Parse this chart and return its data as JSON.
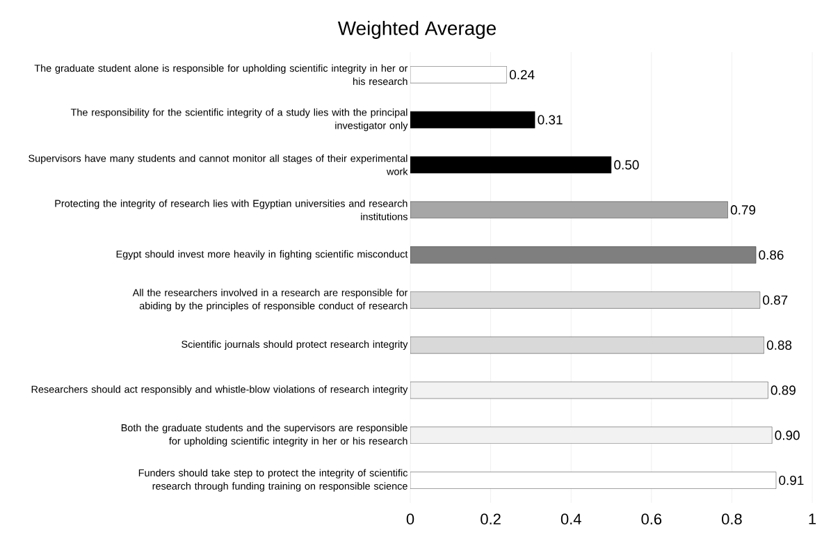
{
  "chart_data": {
    "type": "bar",
    "orientation": "horizontal",
    "title": "Weighted Average",
    "categories": [
      "The graduate student alone is responsible for upholding scientific integrity in her or his research",
      "The responsibility for the scientific integrity of a study lies with the principal investigator only",
      "Supervisors have many students and cannot monitor all stages of their experimental work",
      "Protecting the integrity of research lies with Egyptian universities and research institutions",
      "Egypt should invest more heavily in fighting scientific misconduct",
      "All the researchers involved in a research are responsible for abiding by the principles of responsible conduct of research",
      "Scientific journals should protect research integrity",
      "Researchers should act responsibly and whistle-blow violations of research integrity",
      "Both the graduate students and the supervisors are responsible for upholding scientific integrity in her or his research",
      "Funders should take step to protect the integrity of scientific research through funding training on responsible science"
    ],
    "values": [
      0.24,
      0.31,
      0.5,
      0.79,
      0.86,
      0.87,
      0.88,
      0.89,
      0.9,
      0.91
    ],
    "value_labels": [
      "0.24",
      "0.31",
      "0.50",
      "0.79",
      "0.86",
      "0.87",
      "0.88",
      "0.89",
      "0.90",
      "0.91"
    ],
    "colors": [
      "#ffffff",
      "#000000",
      "#000000",
      "#a6a6a6",
      "#7f7f7f",
      "#d9d9d9",
      "#d9d9d9",
      "#f2f2f2",
      "#f2f2f2",
      "#ffffff"
    ],
    "xlim": [
      0,
      1
    ],
    "xticks": [
      0,
      0.2,
      0.4,
      0.6,
      0.8,
      1
    ],
    "grid": "x"
  }
}
